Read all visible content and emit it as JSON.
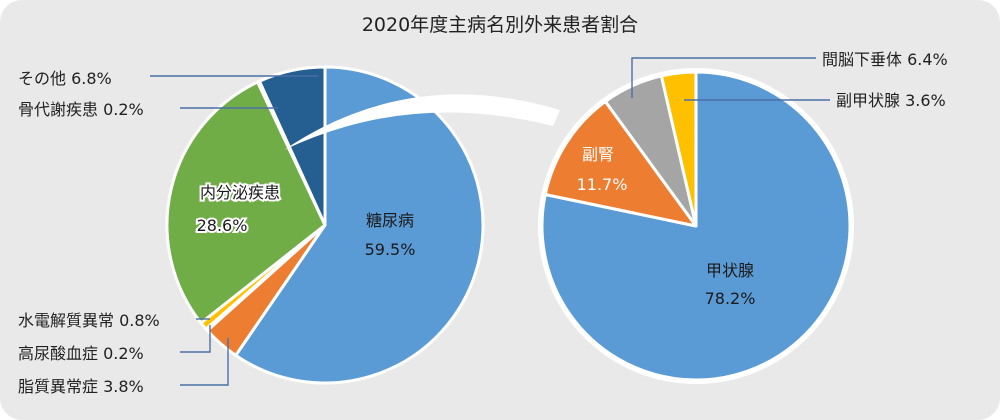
{
  "chart_data": [
    {
      "type": "pie",
      "title": "2020年度主病名別外来患者割合",
      "categories": [
        "糖尿病",
        "脂質異常症",
        "高尿酸血症",
        "水電解質異常",
        "内分泌疾患",
        "骨代謝疾患",
        "その他"
      ],
      "values": [
        59.5,
        3.8,
        0.2,
        0.8,
        28.6,
        0.2,
        6.8
      ],
      "labels": [
        "59.5%",
        "3.8%",
        "0.2%",
        "0.8%",
        "28.6%",
        "0.2%",
        "6.8%"
      ],
      "colors": [
        "#5b9bd5",
        "#ed7d31",
        "#a5a5a5",
        "#ffc000",
        "#70ad47",
        "#255e91",
        "#255e91"
      ]
    },
    {
      "type": "pie",
      "categories": [
        "甲状腺",
        "副腎",
        "間脳下垂体",
        "副甲状腺"
      ],
      "values": [
        78.2,
        11.7,
        6.4,
        3.6
      ],
      "labels": [
        "78.2%",
        "11.7%",
        "6.4%",
        "3.6%"
      ],
      "colors": [
        "#5b9bd5",
        "#ed7d31",
        "#a5a5a5",
        "#ffc000"
      ]
    }
  ]
}
